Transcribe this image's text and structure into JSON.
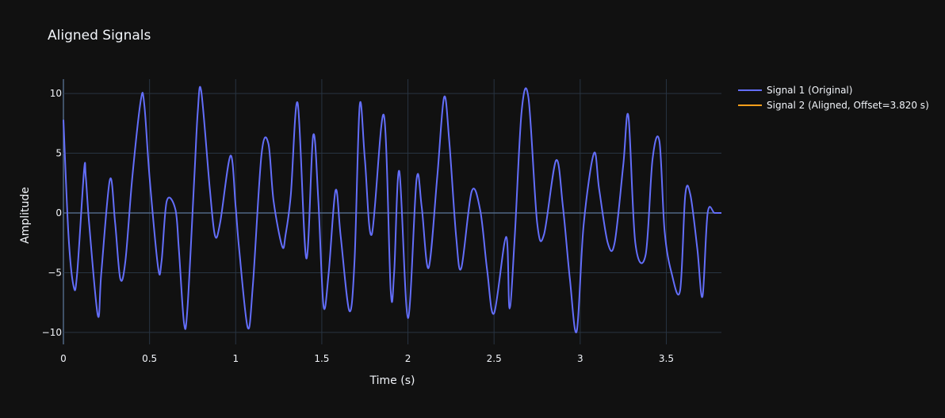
{
  "chart_data": {
    "type": "line",
    "title": "Aligned Signals",
    "xlabel": "Time (s)",
    "ylabel": "Amplitude",
    "xlim": [
      0,
      3.82
    ],
    "ylim": [
      -11,
      11.2
    ],
    "x_ticks": [
      0,
      0.5,
      1,
      1.5,
      2,
      2.5,
      3,
      3.5
    ],
    "x_tick_labels": [
      "0",
      "0.5",
      "1",
      "1.5",
      "2",
      "2.5",
      "3",
      "3.5"
    ],
    "y_ticks": [
      10,
      5,
      0,
      -5,
      -10
    ],
    "y_tick_labels": [
      "10",
      "5",
      "0",
      "−5",
      "−10"
    ],
    "grid": true,
    "legend_position": "top-right outside",
    "series": [
      {
        "name": "Signal 1 (Original)",
        "color": "#636efa",
        "x": [
          0,
          0.03,
          0.06,
          0.08,
          0.12,
          0.13,
          0.15,
          0.2,
          0.22,
          0.27,
          0.3,
          0.33,
          0.36,
          0.4,
          0.45,
          0.47,
          0.5,
          0.55,
          0.57,
          0.6,
          0.65,
          0.67,
          0.7,
          0.72,
          0.76,
          0.78,
          0.8,
          0.85,
          0.88,
          0.91,
          0.97,
          1.0,
          1.02,
          1.07,
          1.1,
          1.15,
          1.19,
          1.22,
          1.27,
          1.29,
          1.32,
          1.36,
          1.41,
          1.45,
          1.48,
          1.51,
          1.54,
          1.58,
          1.61,
          1.66,
          1.69,
          1.72,
          1.75,
          1.79,
          1.86,
          1.9,
          1.92,
          1.95,
          2.0,
          2.05,
          2.08,
          2.12,
          2.17,
          2.21,
          2.24,
          2.28,
          2.31,
          2.37,
          2.42,
          2.46,
          2.5,
          2.57,
          2.59,
          2.62,
          2.66,
          2.7,
          2.75,
          2.79,
          2.86,
          2.9,
          2.94,
          2.98,
          3.02,
          3.08,
          3.11,
          3.16,
          3.2,
          3.25,
          3.28,
          3.32,
          3.38,
          3.42,
          3.46,
          3.49,
          3.53,
          3.58,
          3.61,
          3.64,
          3.68,
          3.71,
          3.74,
          3.78,
          3.82
        ],
        "y": [
          7.8,
          -2.0,
          -6.2,
          -5.0,
          3.6,
          3.0,
          -1.0,
          -8.6,
          -5.0,
          2.8,
          -0.8,
          -5.5,
          -4.0,
          3.0,
          9.5,
          9.0,
          3.0,
          -4.6,
          -4.0,
          1.0,
          0.3,
          -3.0,
          -9.2,
          -8.0,
          3.0,
          8.5,
          10.2,
          2.0,
          -1.9,
          -0.8,
          4.8,
          0.5,
          -3.0,
          -9.6,
          -6.0,
          4.9,
          5.8,
          1.0,
          -2.8,
          -1.8,
          1.5,
          9.2,
          -3.8,
          6.5,
          1.0,
          -7.8,
          -5.0,
          1.9,
          -2.0,
          -8.2,
          -4.0,
          9.0,
          4.5,
          -1.8,
          8.2,
          -6.5,
          -5.0,
          3.5,
          -8.8,
          2.8,
          0.5,
          -4.6,
          3.0,
          9.7,
          6.0,
          -2.0,
          -4.6,
          1.8,
          0.2,
          -4.8,
          -8.4,
          -2.0,
          -8.0,
          -2.0,
          8.5,
          9.6,
          -0.8,
          -1.8,
          4.4,
          0.5,
          -5.5,
          -9.9,
          -1.0,
          5.0,
          2.0,
          -2.5,
          -2.5,
          4.0,
          8.1,
          -2.5,
          -3.5,
          4.5,
          6.0,
          -1.5,
          -5.0,
          -6.5,
          1.5,
          1.5,
          -3.0,
          -7.0,
          0.0,
          0,
          0
        ],
        "note": ""
      },
      {
        "name": "Signal 2 (Aligned, Offset=3.820 s)",
        "color": "#ff9f1a",
        "x": [],
        "y": []
      }
    ]
  }
}
